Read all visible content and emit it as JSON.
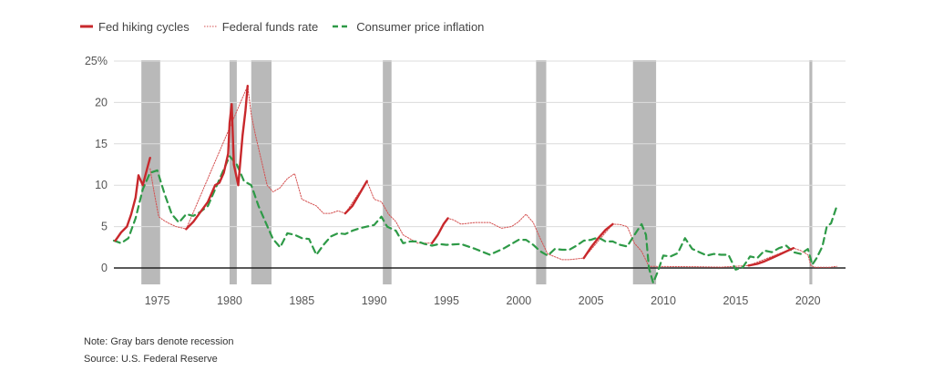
{
  "chart_data": {
    "type": "line",
    "title": "",
    "xlabel": "",
    "ylabel": "",
    "xlim": [
      1972,
      2022.6
    ],
    "ylim": [
      -2,
      25
    ],
    "x_ticks": [
      1975,
      1980,
      1985,
      1990,
      1995,
      2000,
      2005,
      2010,
      2015,
      2020
    ],
    "y_ticks": [
      {
        "value": 0,
        "label": "0"
      },
      {
        "value": 5,
        "label": "5"
      },
      {
        "value": 10,
        "label": "10"
      },
      {
        "value": 15,
        "label": "15"
      },
      {
        "value": 20,
        "label": "20"
      },
      {
        "value": 25,
        "label": "25%"
      }
    ],
    "grid": true,
    "legend_position": "top-left",
    "recessions": [
      [
        1973.9,
        1975.2
      ],
      [
        1980.0,
        1980.5
      ],
      [
        1981.5,
        1982.9
      ],
      [
        1990.6,
        1991.2
      ],
      [
        2001.2,
        2001.9
      ],
      [
        2007.9,
        2009.5
      ],
      [
        2020.1,
        2020.3
      ]
    ],
    "series": [
      {
        "name": "Fed hiking cycles",
        "color": "#c8282c",
        "style": "solid",
        "segments": [
          {
            "x": [
              1972.1,
              1972.5,
              1972.9,
              1973.2,
              1973.5,
              1973.7,
              1974.0,
              1974.3,
              1974.5
            ],
            "y": [
              3.3,
              4.3,
              5.0,
              6.5,
              8.5,
              11.2,
              10.0,
              12.0,
              13.3
            ]
          },
          {
            "x": [
              1977.0,
              1977.5,
              1978.0,
              1978.5,
              1979.0,
              1979.3,
              1979.6,
              1979.9,
              1980.0,
              1980.15,
              1980.3,
              1980.6,
              1980.9,
              1981.1,
              1981.25
            ],
            "y": [
              4.7,
              5.6,
              6.8,
              8.0,
              10.0,
              10.3,
              11.5,
              13.8,
              17.5,
              19.8,
              12.5,
              10.0,
              16.0,
              19.0,
              22.0
            ]
          },
          {
            "x": [
              1988.0,
              1988.5,
              1989.0,
              1989.3,
              1989.5
            ],
            "y": [
              6.6,
              7.5,
              9.0,
              9.9,
              10.5
            ]
          },
          {
            "x": [
              1994.0,
              1994.4,
              1994.8,
              1995.1
            ],
            "y": [
              3.0,
              4.0,
              5.3,
              6.0
            ]
          },
          {
            "x": [
              2004.5,
              2005.0,
              2005.5,
              2006.0,
              2006.5
            ],
            "y": [
              1.2,
              2.5,
              3.6,
              4.6,
              5.3
            ]
          },
          {
            "x": [
              2015.9,
              2016.5,
              2017.0,
              2017.5,
              2018.0,
              2018.5,
              2019.0
            ],
            "y": [
              0.3,
              0.5,
              0.8,
              1.2,
              1.6,
              2.0,
              2.4
            ]
          }
        ]
      },
      {
        "name": "Federal funds rate",
        "color": "#d45050",
        "style": "dotted",
        "segments": [
          {
            "x": [
              1974.5,
              1974.8,
              1975.1,
              1975.4,
              1975.8,
              1976.3,
              1976.8,
              1977.0,
              1981.25,
              1981.5,
              1981.8,
              1982.2,
              1982.6,
              1983.0,
              1983.5,
              1984.0,
              1984.5,
              1985.0,
              1985.5,
              1986.0,
              1986.5,
              1987.0,
              1987.5,
              1988.0,
              1989.5,
              1990.0,
              1990.5,
              1991.0,
              1991.5,
              1992.0,
              1992.5,
              1993.0,
              1993.5,
              1994.0,
              1995.1,
              1995.5,
              1996.0,
              1997.0,
              1998.0,
              1998.8,
              1999.5,
              2000.0,
              2000.5,
              2001.0,
              2001.5,
              2002.0,
              2003.0,
              2003.5,
              2004.5,
              2006.5,
              2007.0,
              2007.5,
              2008.0,
              2008.5,
              2009.0,
              2010.0,
              2012.0,
              2014.0,
              2015.9,
              2019.0,
              2019.5,
              2020.0,
              2020.2,
              2020.5,
              2021.0,
              2021.5,
              2022.0
            ],
            "y": [
              12.0,
              9.0,
              6.2,
              5.8,
              5.4,
              5.0,
              4.8,
              4.7,
              22.0,
              18.5,
              16.0,
              13.0,
              10.0,
              9.2,
              9.7,
              10.8,
              11.4,
              8.3,
              7.9,
              7.5,
              6.6,
              6.6,
              6.9,
              6.6,
              10.5,
              8.3,
              8.0,
              6.5,
              5.6,
              4.0,
              3.5,
              3.0,
              3.0,
              3.0,
              6.0,
              5.8,
              5.3,
              5.5,
              5.5,
              4.8,
              5.0,
              5.6,
              6.5,
              5.5,
              3.5,
              1.7,
              1.0,
              1.0,
              1.2,
              5.3,
              5.25,
              5.0,
              3.0,
              2.0,
              0.2,
              0.18,
              0.15,
              0.1,
              0.3,
              2.4,
              2.1,
              1.6,
              0.3,
              0.08,
              0.08,
              0.08,
              0.2
            ]
          }
        ]
      },
      {
        "name": "Consumer price inflation",
        "color": "#2e9a47",
        "style": "dashed",
        "segments": [
          {
            "x": [
              1972.0,
              1972.5,
              1973.0,
              1973.5,
              1974.0,
              1974.5,
              1975.0,
              1975.5,
              1976.0,
              1976.5,
              1977.0,
              1977.5,
              1978.0,
              1978.5,
              1979.0,
              1979.5,
              1980.0,
              1980.5,
              1981.0,
              1981.5,
              1982.0,
              1982.5,
              1983.0,
              1983.5,
              1984.0,
              1984.5,
              1985.0,
              1985.5,
              1986.0,
              1986.5,
              1987.0,
              1987.5,
              1988.0,
              1988.5,
              1989.0,
              1989.5,
              1990.0,
              1990.5,
              1990.9,
              1991.5,
              1992.0,
              1992.5,
              1993.0,
              1993.5,
              1994.0,
              1994.5,
              1995.0,
              1996.0,
              1997.0,
              1998.0,
              1999.0,
              2000.0,
              2000.5,
              2001.0,
              2001.5,
              2002.0,
              2002.5,
              2003.0,
              2003.5,
              2004.0,
              2004.5,
              2005.0,
              2005.5,
              2006.0,
              2006.5,
              2007.0,
              2007.5,
              2008.0,
              2008.5,
              2008.8,
              2009.0,
              2009.3,
              2009.6,
              2010.0,
              2010.5,
              2011.0,
              2011.5,
              2012.0,
              2012.5,
              2013.0,
              2013.5,
              2014.0,
              2014.5,
              2015.0,
              2015.5,
              2016.0,
              2016.5,
              2017.0,
              2017.5,
              2018.0,
              2018.5,
              2019.0,
              2019.5,
              2020.0,
              2020.3,
              2020.6,
              2021.0,
              2021.3,
              2021.6,
              2022.0
            ],
            "y": [
              3.3,
              3.0,
              3.6,
              6.0,
              9.5,
              11.5,
              11.8,
              9.0,
              6.5,
              5.5,
              6.5,
              6.3,
              6.8,
              7.5,
              9.5,
              11.5,
              13.5,
              12.5,
              10.5,
              10.0,
              7.5,
              5.5,
              3.5,
              2.5,
              4.2,
              4.0,
              3.6,
              3.5,
              1.6,
              2.8,
              3.8,
              4.2,
              4.1,
              4.5,
              4.8,
              5.0,
              5.2,
              6.2,
              5.0,
              4.5,
              3.0,
              3.2,
              3.2,
              2.9,
              2.7,
              2.9,
              2.8,
              2.9,
              2.3,
              1.6,
              2.4,
              3.4,
              3.4,
              2.8,
              2.0,
              1.5,
              2.3,
              2.2,
              2.2,
              2.7,
              3.3,
              3.4,
              3.7,
              3.2,
              3.2,
              2.8,
              2.6,
              4.0,
              5.3,
              4.0,
              0.0,
              -1.8,
              -0.5,
              1.5,
              1.4,
              1.8,
              3.6,
              2.3,
              1.9,
              1.5,
              1.7,
              1.6,
              1.6,
              -0.2,
              0.1,
              1.4,
              1.2,
              2.1,
              1.9,
              2.4,
              2.7,
              1.9,
              1.7,
              2.3,
              0.4,
              1.2,
              2.6,
              5.0,
              5.4,
              7.5
            ]
          }
        ]
      }
    ]
  },
  "notes": {
    "note": "Note: Gray bars denote recession",
    "source": "Source: U.S. Federal Reserve"
  }
}
